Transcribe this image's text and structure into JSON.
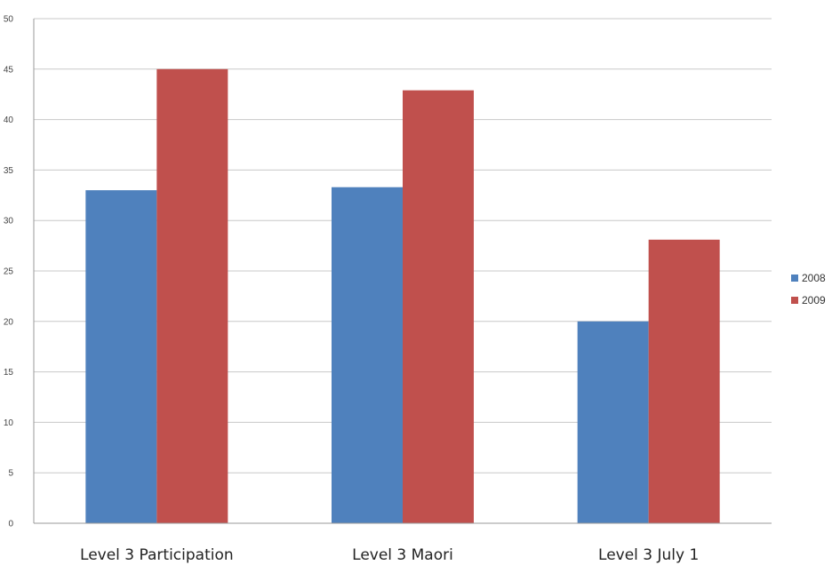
{
  "chart_data": {
    "type": "bar",
    "categories": [
      "Level 3 Participation",
      "Level 3 Maori",
      "Level 3 July 1"
    ],
    "series": [
      {
        "name": "2008",
        "values": [
          33,
          33.3,
          20
        ],
        "color": "#4f81bd"
      },
      {
        "name": "2009",
        "values": [
          45,
          42.9,
          28.1
        ],
        "color": "#c0504d"
      }
    ],
    "yticks": [
      "0",
      "5",
      "10",
      "15",
      "20",
      "25",
      "30",
      "35",
      "40",
      "45",
      "50"
    ],
    "ylim": [
      0,
      50
    ],
    "grid": true,
    "legend": "right"
  }
}
